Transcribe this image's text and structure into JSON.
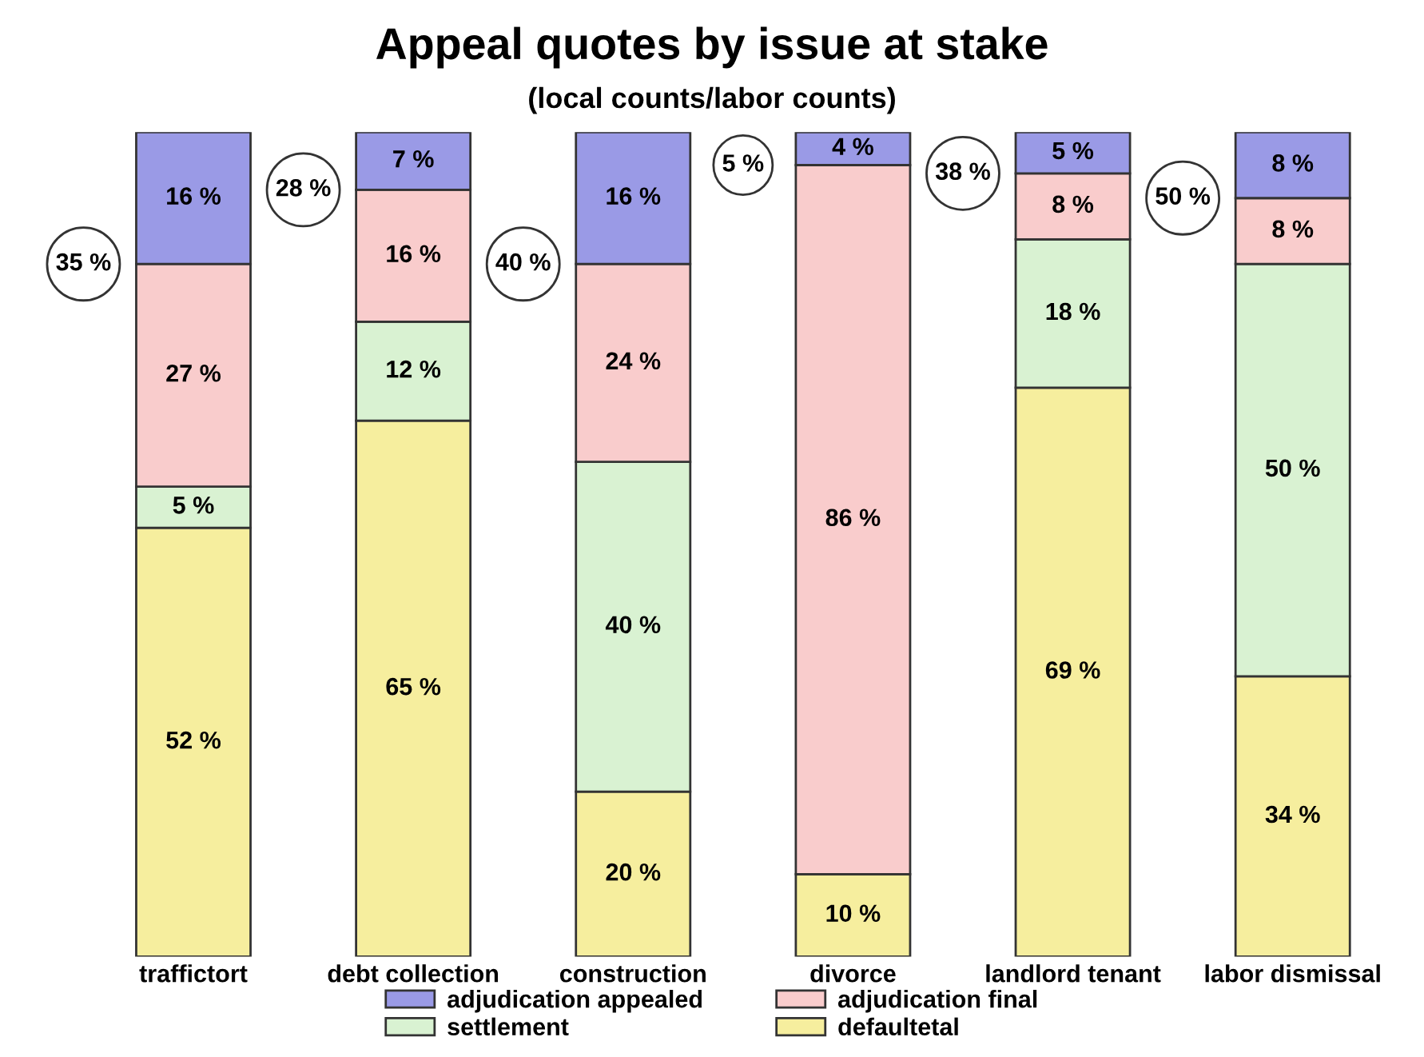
{
  "chart_data": {
    "type": "bar",
    "stacked": true,
    "title": "Appeal quotes by issue at stake",
    "subtitle": "(local counts/labor counts)",
    "categories": [
      "traffictort",
      "debt collection",
      "construction",
      "divorce",
      "landlord tenant",
      "labor dismissal"
    ],
    "series": [
      {
        "name": "defaultetal",
        "color": "#f6ee9e",
        "values": [
          52,
          65,
          20,
          10,
          69,
          34
        ],
        "value_labels": [
          "52 %",
          "65 %",
          "20 %",
          "10 %",
          "69 %",
          "34 %"
        ]
      },
      {
        "name": "settlement",
        "color": "#d9f2d2",
        "values": [
          5,
          12,
          40,
          null,
          18,
          50
        ],
        "value_labels": [
          "5 %",
          "12 %",
          "40 %",
          null,
          "18 %",
          "50 %"
        ]
      },
      {
        "name": "adjudication final",
        "color": "#f9cccc",
        "values": [
          27,
          16,
          24,
          86,
          8,
          8
        ],
        "value_labels": [
          "27 %",
          "16 %",
          "24 %",
          "86 %",
          "8 %",
          "8 %"
        ]
      },
      {
        "name": "adjudication appealed",
        "color": "#9a9ae6",
        "values": [
          16,
          7,
          16,
          4,
          5,
          8
        ],
        "value_labels": [
          "16 %",
          "7 %",
          "16 %",
          "4 %",
          "5 %",
          "8 %"
        ]
      }
    ],
    "ylim": [
      0,
      100
    ],
    "tick_labels": "x",
    "grid": false,
    "legend": "bottom",
    "annotations": [
      "35 %",
      "28 %",
      "40 %",
      "5 %",
      "38 %",
      "50 %"
    ]
  }
}
